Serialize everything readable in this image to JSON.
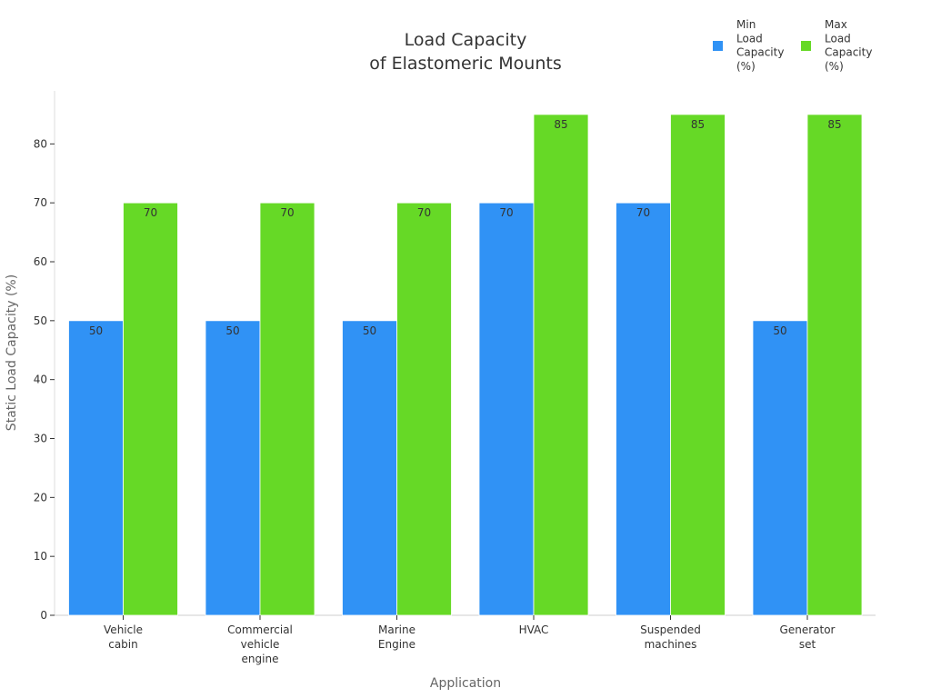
{
  "chart_data": {
    "type": "bar",
    "title": "Load Capacity\nof Elastomeric Mounts",
    "xlabel": "Application",
    "ylabel": "Static Load Capacity (%)",
    "categories": [
      "Vehicle\ncabin",
      "Commercial\nvehicle\nengine",
      "Marine\nEngine",
      "HVAC",
      "Suspended\nmachines",
      "Generator\nset"
    ],
    "series": [
      {
        "name": "Min\nLoad\nCapacity\n(%)",
        "color": "#3092f5",
        "values": [
          50,
          50,
          50,
          70,
          70,
          50
        ]
      },
      {
        "name": "Max\nLoad\nCapacity\n(%)",
        "color": "#66d926",
        "values": [
          70,
          70,
          70,
          85,
          85,
          85
        ]
      }
    ],
    "ylim": [
      0,
      89
    ],
    "yticks": [
      0,
      10,
      20,
      30,
      40,
      50,
      60,
      70,
      80
    ],
    "grid": false,
    "legend": "top-right",
    "data_labels": true
  }
}
